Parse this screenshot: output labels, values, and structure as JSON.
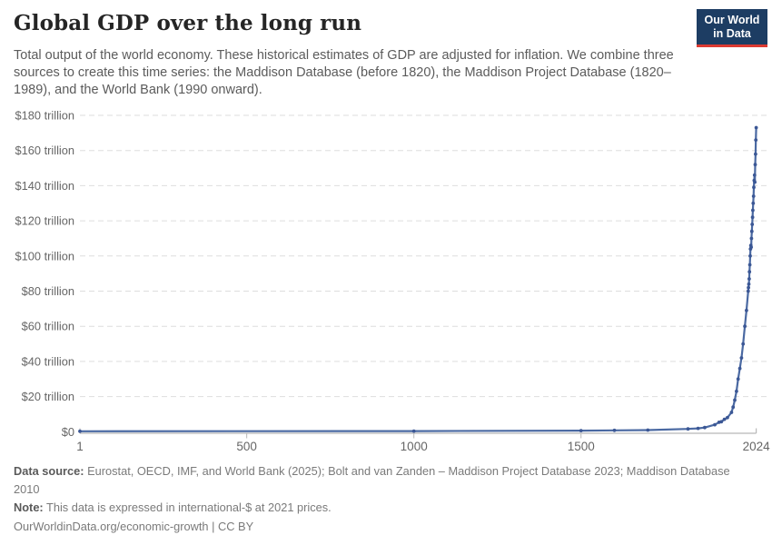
{
  "header": {
    "title": "Global GDP over the long run",
    "subtitle": "Total output of the world economy. These historical estimates of GDP are adjusted for inflation. We combine three sources to create this time series: the Maddison Database (before 1820), the Maddison Project Database (1820–1989), and the World Bank (1990 onward).",
    "logo": {
      "line1": "Our World",
      "line2": "in Data",
      "bg_color": "#1d3d63",
      "accent_color": "#dc3a32"
    }
  },
  "chart_data": {
    "type": "line",
    "title": "Global GDP over the long run",
    "xlabel": "",
    "ylabel": "",
    "unit": "trillion international-$ at 2021 prices",
    "xlim": [
      1,
      2024
    ],
    "ylim": [
      0,
      180
    ],
    "grid": "horizontal-dashed",
    "legend": "none",
    "x_ticks": [
      {
        "value": 1,
        "label": "1"
      },
      {
        "value": 500,
        "label": "500"
      },
      {
        "value": 1000,
        "label": "1000"
      },
      {
        "value": 1500,
        "label": "1500"
      },
      {
        "value": 2024,
        "label": "2024"
      }
    ],
    "y_ticks": [
      {
        "value": 0,
        "label": "$0"
      },
      {
        "value": 20,
        "label": "$20 trillion"
      },
      {
        "value": 40,
        "label": "$40 trillion"
      },
      {
        "value": 60,
        "label": "$60 trillion"
      },
      {
        "value": 80,
        "label": "$80 trillion"
      },
      {
        "value": 100,
        "label": "$100 trillion"
      },
      {
        "value": 120,
        "label": "$120 trillion"
      },
      {
        "value": 140,
        "label": "$140 trillion"
      },
      {
        "value": 160,
        "label": "$160 trillion"
      },
      {
        "value": 180,
        "label": "$180 trillion"
      }
    ],
    "series": [
      {
        "name": "Global GDP",
        "points": [
          [
            1,
            0.25
          ],
          [
            1000,
            0.35
          ],
          [
            1500,
            0.62
          ],
          [
            1600,
            0.79
          ],
          [
            1700,
            0.94
          ],
          [
            1820,
            1.6
          ],
          [
            1850,
            1.9
          ],
          [
            1870,
            2.4
          ],
          [
            1900,
            4.0
          ],
          [
            1913,
            5.4
          ],
          [
            1920,
            5.7
          ],
          [
            1929,
            7.1
          ],
          [
            1938,
            8.0
          ],
          [
            1950,
            11
          ],
          [
            1955,
            14
          ],
          [
            1960,
            18
          ],
          [
            1965,
            23
          ],
          [
            1970,
            30
          ],
          [
            1975,
            36
          ],
          [
            1980,
            42
          ],
          [
            1985,
            50
          ],
          [
            1990,
            60
          ],
          [
            1995,
            69
          ],
          [
            2000,
            80
          ],
          [
            2001,
            82
          ],
          [
            2002,
            84
          ],
          [
            2003,
            87
          ],
          [
            2004,
            91
          ],
          [
            2005,
            95
          ],
          [
            2006,
            100
          ],
          [
            2007,
            104
          ],
          [
            2008,
            106
          ],
          [
            2009,
            105
          ],
          [
            2010,
            110
          ],
          [
            2011,
            114
          ],
          [
            2012,
            118
          ],
          [
            2013,
            122
          ],
          [
            2014,
            126
          ],
          [
            2015,
            130
          ],
          [
            2016,
            134
          ],
          [
            2017,
            139
          ],
          [
            2018,
            143
          ],
          [
            2019,
            146
          ],
          [
            2020,
            142
          ],
          [
            2021,
            152
          ],
          [
            2022,
            158
          ],
          [
            2023,
            166
          ],
          [
            2024,
            173
          ]
        ]
      }
    ],
    "colors": {
      "line": "#4a69a2",
      "marker": "#3b5795",
      "grid": "#dedede",
      "axis": "#b8b8b8",
      "tick_text": "#666666"
    }
  },
  "footer": {
    "source_label": "Data source:",
    "source_text": " Eurostat, OECD, IMF, and World Bank (2025); Bolt and van Zanden – Maddison Project Database 2023; Maddison Database 2010",
    "note_label": "Note:",
    "note_text": " This data is expressed in international-$ at 2021 prices.",
    "link": "OurWorldinData.org/economic-growth | CC BY"
  }
}
